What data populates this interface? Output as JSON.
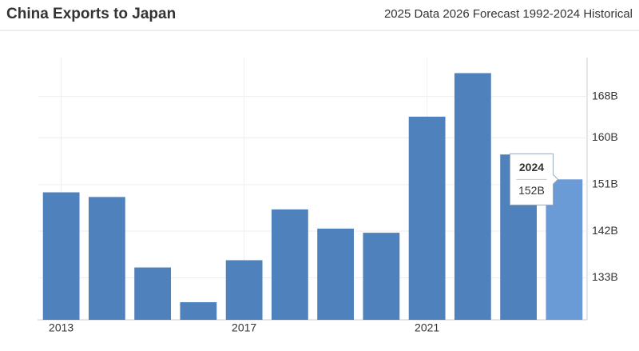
{
  "chart_data": {
    "type": "bar",
    "title": "China Exports to Japan",
    "subtitle": "2025 Data 2026 Forecast 1992-2024 Historical",
    "x": [
      2013,
      2014,
      2015,
      2016,
      2017,
      2018,
      2019,
      2020,
      2021,
      2022,
      2023,
      2024
    ],
    "values": [
      149.5,
      148.6,
      135.0,
      128.3,
      136.4,
      146.2,
      142.5,
      141.7,
      164.1,
      172.5,
      156.8,
      152
    ],
    "value_labels": [
      null,
      null,
      null,
      null,
      null,
      null,
      null,
      null,
      null,
      null,
      null,
      "152B"
    ],
    "colors": [
      "#4f81bd",
      "#4f81bd",
      "#4f81bd",
      "#4f81bd",
      "#4f81bd",
      "#4f81bd",
      "#4f81bd",
      "#4f81bd",
      "#4f81bd",
      "#4f81bd",
      "#4f81bd",
      "#6a9bd6"
    ],
    "xlim": [
      2012.5,
      2024.5
    ],
    "xticks": [
      2013,
      2017,
      2021
    ],
    "ylim": [
      124.9,
      175.5
    ],
    "yticks": [
      {
        "value": 133,
        "label": "133B"
      },
      {
        "value": 142,
        "label": "142B"
      },
      {
        "value": 151,
        "label": "151B"
      },
      {
        "value": 160,
        "label": "160B"
      },
      {
        "value": 168,
        "label": "168B"
      }
    ],
    "grid": true
  }
}
